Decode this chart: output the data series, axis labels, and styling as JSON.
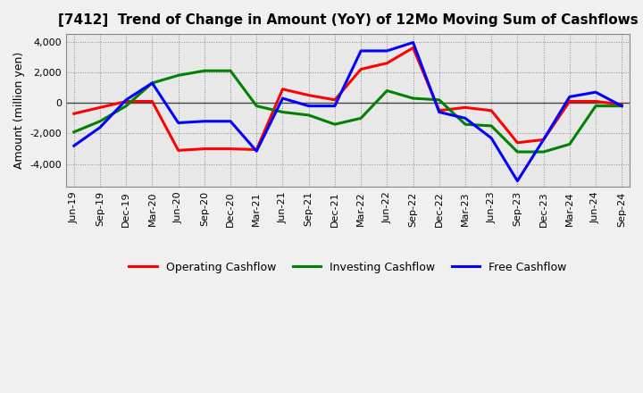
{
  "title": "[7412]  Trend of Change in Amount (YoY) of 12Mo Moving Sum of Cashflows",
  "ylabel": "Amount (million yen)",
  "x_labels": [
    "Jun-19",
    "Sep-19",
    "Dec-19",
    "Mar-20",
    "Jun-20",
    "Sep-20",
    "Dec-20",
    "Mar-21",
    "Jun-21",
    "Sep-21",
    "Dec-21",
    "Mar-22",
    "Jun-22",
    "Sep-22",
    "Dec-22",
    "Mar-23",
    "Jun-23",
    "Sep-23",
    "Dec-23",
    "Mar-24",
    "Jun-24",
    "Sep-24"
  ],
  "operating": [
    -700,
    -300,
    100,
    100,
    -3100,
    -3000,
    -3000,
    -3050,
    900,
    500,
    200,
    2200,
    2600,
    3600,
    -500,
    -300,
    -500,
    -2600,
    -2400,
    100,
    100,
    -100
  ],
  "investing": [
    -1900,
    -1200,
    -200,
    1300,
    1800,
    2100,
    2100,
    -200,
    -600,
    -800,
    -1400,
    -1000,
    800,
    300,
    200,
    -1400,
    -1500,
    -3200,
    -3200,
    -2700,
    -200,
    -200
  ],
  "free": [
    -2800,
    -1600,
    200,
    1300,
    -1300,
    -1200,
    -1200,
    -3150,
    300,
    -200,
    -200,
    3400,
    3400,
    3950,
    -600,
    -1000,
    -2300,
    -5100,
    -2400,
    400,
    700,
    -200
  ],
  "ylim": [
    -5500,
    4500
  ],
  "yticks": [
    -4000,
    -2000,
    0,
    2000,
    4000
  ],
  "colors": {
    "operating": "#ff0000",
    "investing": "#008000",
    "free": "#0000ff"
  },
  "background": "#f0f0f0",
  "plot_bg": "#e8e8e8",
  "grid_color": "#888888",
  "title_fontsize": 11,
  "axis_fontsize": 8,
  "ylabel_fontsize": 9,
  "legend_fontsize": 9,
  "linewidth": 2.2
}
